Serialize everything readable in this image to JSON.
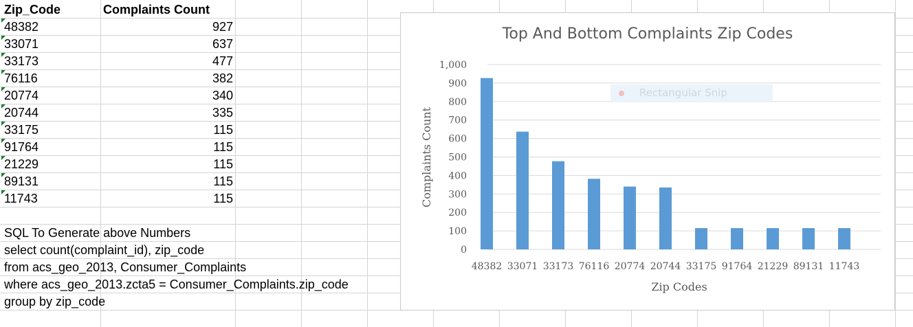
{
  "sheet": {
    "headers": [
      "Zip_Code",
      "Complaints Count"
    ],
    "rows": [
      {
        "zip": "48382",
        "count": "927"
      },
      {
        "zip": "33071",
        "count": "637"
      },
      {
        "zip": "33173",
        "count": "477"
      },
      {
        "zip": "76116",
        "count": "382"
      },
      {
        "zip": "20774",
        "count": "340"
      },
      {
        "zip": "20744",
        "count": "335"
      },
      {
        "zip": "33175",
        "count": "115"
      },
      {
        "zip": "91764",
        "count": "115"
      },
      {
        "zip": "21229",
        "count": "115"
      },
      {
        "zip": "89131",
        "count": "115"
      },
      {
        "zip": "11743",
        "count": "115"
      }
    ],
    "sql_lines": [
      "SQL To Generate above Numbers",
      "select count(complaint_id), zip_code",
      "from  acs_geo_2013, Consumer_Complaints",
      "where acs_geo_2013.zcta5 = Consumer_Complaints.zip_code",
      "group by zip_code"
    ]
  },
  "overlay": {
    "snip_label": "Rectangular Snip"
  },
  "colors": {
    "bar": "#5b9bd5",
    "text_tick": "#595959"
  },
  "chart_data": {
    "type": "bar",
    "title": "Top And Bottom Complaints Zip Codes",
    "xlabel": "Zip Codes",
    "ylabel": "Complaints Count",
    "categories": [
      "48382",
      "33071",
      "33173",
      "76116",
      "20774",
      "20744",
      "33175",
      "91764",
      "21229",
      "89131",
      "11743"
    ],
    "values": [
      927,
      637,
      477,
      382,
      340,
      335,
      115,
      115,
      115,
      115,
      115
    ],
    "ylim": [
      0,
      1000
    ],
    "yticks": [
      0,
      100,
      200,
      300,
      400,
      500,
      600,
      700,
      800,
      900,
      1000
    ],
    "ytick_labels": [
      "0",
      "100",
      "200",
      "300",
      "400",
      "500",
      "600",
      "700",
      "800",
      "900",
      "1,000"
    ],
    "grid": true
  }
}
